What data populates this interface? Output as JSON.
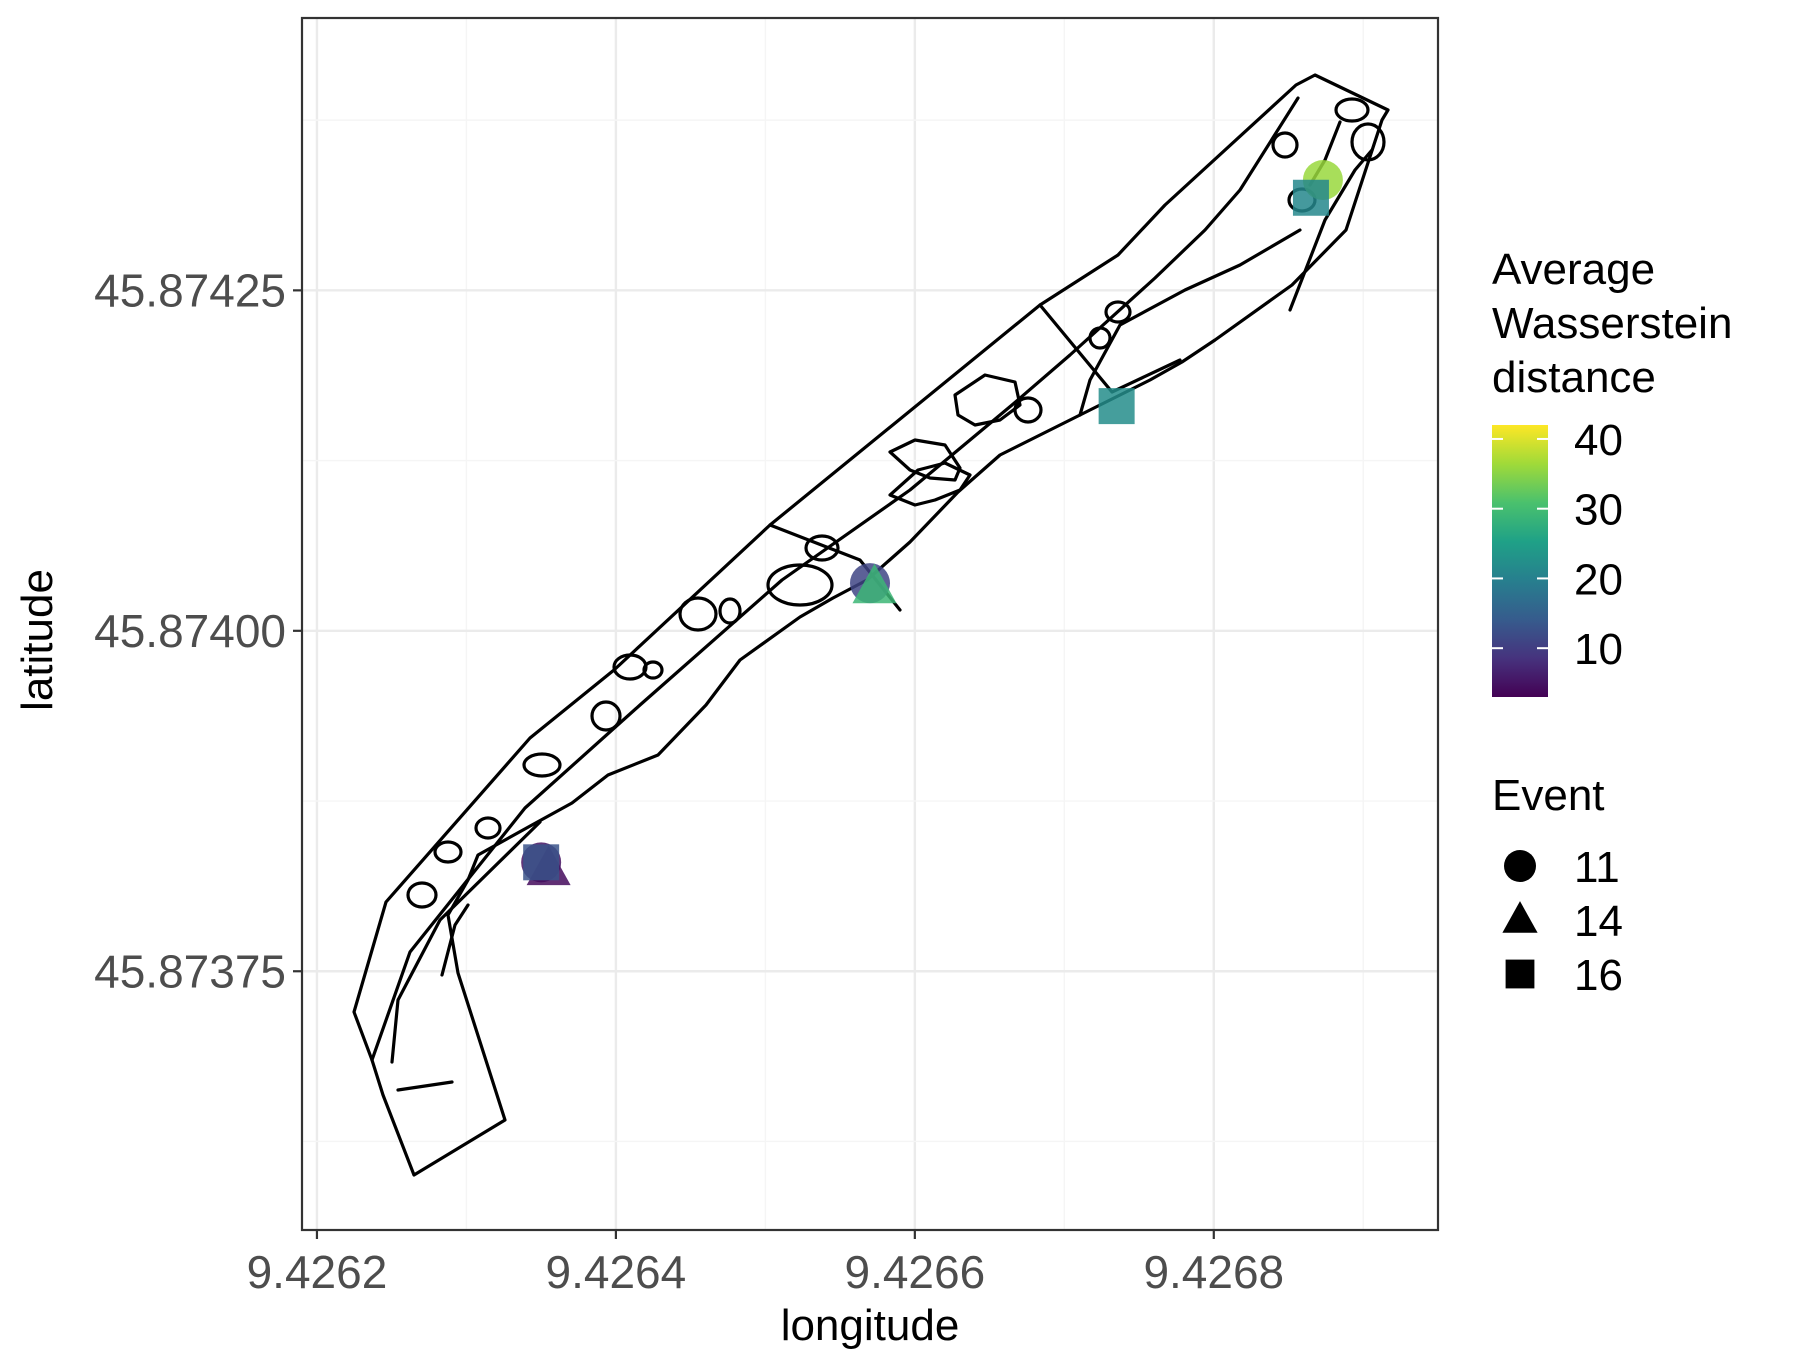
{
  "chart_data": {
    "type": "scatter",
    "title": "",
    "xlabel": "longitude",
    "ylabel": "latitude",
    "xlim": [
      9.42619,
      9.42695
    ],
    "ylim": [
      45.87356,
      45.87445
    ],
    "x_ticks": [
      9.4262,
      9.4264,
      9.4266,
      9.4268
    ],
    "x_tick_labels": [
      "9.4262",
      "9.4264",
      "9.4266",
      "9.4268"
    ],
    "y_ticks": [
      45.87375,
      45.874,
      45.87425
    ],
    "y_tick_labels": [
      "45.87375",
      "45.87400",
      "45.87425"
    ],
    "grid": true,
    "color_legend": {
      "title_lines": [
        "Average",
        "Wasserstein",
        "distance"
      ],
      "palette": "viridis",
      "range": [
        3,
        42
      ],
      "ticks": [
        10,
        20,
        30,
        40
      ],
      "tick_labels": [
        "10",
        "20",
        "30",
        "40"
      ],
      "colors": [
        "#440154",
        "#46337e",
        "#365c8d",
        "#277f8e",
        "#1fa187",
        "#4ac16d",
        "#a0da39",
        "#fde725"
      ]
    },
    "shape_legend": {
      "title": "Event",
      "entries": [
        {
          "label": "11",
          "shape": "circle"
        },
        {
          "label": "14",
          "shape": "triangle"
        },
        {
          "label": "16",
          "shape": "square"
        }
      ]
    },
    "legend_position": "right",
    "points": [
      {
        "event": "11",
        "shape": "circle",
        "x": 9.42635,
        "y": 45.87383,
        "value": 5
      },
      {
        "event": "14",
        "shape": "triangle",
        "x": 9.426355,
        "y": 45.873825,
        "value": 4
      },
      {
        "event": "16",
        "shape": "square",
        "x": 9.42635,
        "y": 45.87383,
        "value": 13
      },
      {
        "event": "11",
        "shape": "circle",
        "x": 9.42657,
        "y": 45.874035,
        "value": 11
      },
      {
        "event": "14",
        "shape": "triangle",
        "x": 9.426573,
        "y": 45.874032,
        "value": 29
      },
      {
        "event": "16",
        "shape": "square",
        "x": 9.426735,
        "y": 45.874165,
        "value": 22
      },
      {
        "event": "11",
        "shape": "circle",
        "x": 9.426873,
        "y": 45.874331,
        "value": 36
      },
      {
        "event": "16",
        "shape": "square",
        "x": 9.426865,
        "y": 45.874318,
        "value": 21
      }
    ]
  }
}
